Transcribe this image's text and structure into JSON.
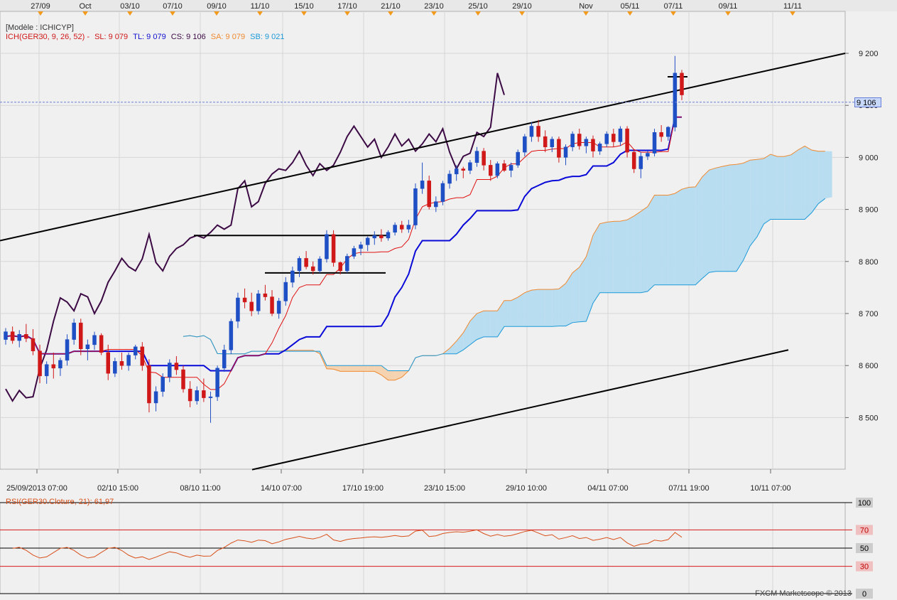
{
  "top_dates": [
    "27/09",
    "Oct",
    "03/10",
    "07/10",
    "09/10",
    "11/10",
    "15/10",
    "17/10",
    "21/10",
    "23/10",
    "25/10",
    "29/10",
    "Nov",
    "05/11",
    "07/11",
    "09/11",
    "11/11"
  ],
  "bottom_dates": [
    "25/09/2013 07:00",
    "02/10 15:00",
    "08/10 11:00",
    "14/10 07:00",
    "17/10 19:00",
    "23/10 15:00",
    "29/10 10:00",
    "04/11 07:00",
    "07/11 19:00",
    "10/11 07:00"
  ],
  "legend": {
    "model": "[Modèle : ICHICYP]",
    "ich": "ICH(GER30, 9, 26, 52) -",
    "sl": "SL: 9 079",
    "tl": "TL: 9 079",
    "cs": "CS: 9 106",
    "sa": "SA: 9 079",
    "sb": "SB: 9 021",
    "rsi": "RSI(GER30.Cloture, 21): 61,97"
  },
  "price_tag": "9 106",
  "brand": "FXCM Marketscope © 2013",
  "colors": {
    "background": "#f0f0f0",
    "bull": "#1f4fc4",
    "bear": "#d01818",
    "tenkan": "#e01010",
    "kijun": "#0a0ad8",
    "chikou": "#3c0a44",
    "senkou_a": "#f08a30",
    "senkou_b": "#1c9ad8",
    "cloud_bull": "#b8dcf0",
    "cloud_bear": "#f5d2b0",
    "rsi": "#d8501a",
    "trendline": "#000000"
  },
  "chart_data": [
    {
      "type": "candlestick",
      "title": "GER30",
      "indicator": "Ichimoku (9, 26, 52)",
      "y_ticks": [
        "9 200",
        "9 100",
        "9 000",
        "8 900",
        "8 800",
        "8 700",
        "8 600",
        "8 500"
      ],
      "ylim": [
        8400,
        9240
      ],
      "current_price": 9106,
      "values": {
        "SL": 9079,
        "TL": 9079,
        "CS": 9106,
        "SA": 9079,
        "SB": 9021
      },
      "candles": [
        [
          8650,
          8672,
          8640,
          8665
        ],
        [
          8665,
          8675,
          8642,
          8648
        ],
        [
          8648,
          8668,
          8635,
          8660
        ],
        [
          8660,
          8680,
          8645,
          8652
        ],
        [
          8652,
          8670,
          8620,
          8628
        ],
        [
          8628,
          8640,
          8566,
          8580
        ],
        [
          8580,
          8608,
          8565,
          8602
        ],
        [
          8602,
          8625,
          8575,
          8595
        ],
        [
          8595,
          8615,
          8580,
          8610
        ],
        [
          8610,
          8660,
          8600,
          8650
        ],
        [
          8650,
          8690,
          8640,
          8682
        ],
        [
          8682,
          8690,
          8620,
          8632
        ],
        [
          8632,
          8650,
          8610,
          8640
        ],
        [
          8640,
          8665,
          8630,
          8658
        ],
        [
          8658,
          8662,
          8620,
          8625
        ],
        [
          8625,
          8640,
          8572,
          8585
        ],
        [
          8585,
          8615,
          8578,
          8608
        ],
        [
          8608,
          8625,
          8592,
          8600
        ],
        [
          8600,
          8625,
          8590,
          8620
        ],
        [
          8620,
          8640,
          8612,
          8636
        ],
        [
          8636,
          8645,
          8590,
          8600
        ],
        [
          8600,
          8612,
          8510,
          8528
        ],
        [
          8528,
          8560,
          8512,
          8550
        ],
        [
          8550,
          8585,
          8540,
          8578
        ],
        [
          8578,
          8612,
          8568,
          8605
        ],
        [
          8605,
          8618,
          8582,
          8592
        ],
        [
          8592,
          8600,
          8548,
          8555
        ],
        [
          8555,
          8570,
          8520,
          8532
        ],
        [
          8532,
          8560,
          8525,
          8552
        ],
        [
          8552,
          8575,
          8530,
          8538
        ],
        [
          8538,
          8550,
          8490,
          8540
        ],
        [
          8540,
          8600,
          8532,
          8595
        ],
        [
          8595,
          8640,
          8588,
          8630
        ],
        [
          8630,
          8690,
          8622,
          8685
        ],
        [
          8685,
          8740,
          8672,
          8730
        ],
        [
          8730,
          8748,
          8710,
          8722
        ],
        [
          8722,
          8740,
          8695,
          8705
        ],
        [
          8705,
          8745,
          8698,
          8738
        ],
        [
          8738,
          8755,
          8725,
          8732
        ],
        [
          8732,
          8745,
          8695,
          8700
        ],
        [
          8700,
          8730,
          8690,
          8724
        ],
        [
          8724,
          8770,
          8715,
          8760
        ],
        [
          8760,
          8790,
          8750,
          8782
        ],
        [
          8782,
          8810,
          8770,
          8806
        ],
        [
          8806,
          8820,
          8785,
          8790
        ],
        [
          8790,
          8800,
          8775,
          8782
        ],
        [
          8782,
          8810,
          8778,
          8805
        ],
        [
          8805,
          8860,
          8798,
          8852
        ],
        [
          8852,
          8860,
          8790,
          8798
        ],
        [
          8798,
          8800,
          8775,
          8782
        ],
        [
          8782,
          8815,
          8778,
          8810
        ],
        [
          8810,
          8830,
          8805,
          8825
        ],
        [
          8825,
          8838,
          8812,
          8832
        ],
        [
          8832,
          8848,
          8820,
          8845
        ],
        [
          8845,
          8858,
          8832,
          8850
        ],
        [
          8850,
          8862,
          8838,
          8845
        ],
        [
          8845,
          8860,
          8840,
          8856
        ],
        [
          8856,
          8875,
          8850,
          8870
        ],
        [
          8870,
          8878,
          8855,
          8862
        ],
        [
          8862,
          8880,
          8855,
          8870
        ],
        [
          8870,
          8950,
          8862,
          8940
        ],
        [
          8940,
          8990,
          8930,
          8955
        ],
        [
          8955,
          8965,
          8900,
          8905
        ],
        [
          8905,
          8925,
          8895,
          8915
        ],
        [
          8915,
          8955,
          8908,
          8950
        ],
        [
          8950,
          8975,
          8940,
          8968
        ],
        [
          8968,
          8985,
          8955,
          8978
        ],
        [
          8978,
          8982,
          8960,
          8975
        ],
        [
          8975,
          8995,
          8968,
          8990
        ],
        [
          8990,
          9020,
          8982,
          9012
        ],
        [
          9012,
          9018,
          8975,
          8985
        ],
        [
          8985,
          8995,
          8955,
          8965
        ],
        [
          8965,
          8992,
          8960,
          8988
        ],
        [
          8988,
          8995,
          8972,
          8975
        ],
        [
          8975,
          8990,
          8962,
          8985
        ],
        [
          8985,
          9015,
          8980,
          9010
        ],
        [
          9010,
          9045,
          9002,
          9040
        ],
        [
          9040,
          9068,
          9030,
          9060
        ],
        [
          9060,
          9072,
          9030,
          9040
        ],
        [
          9040,
          9052,
          9010,
          9020
        ],
        [
          9020,
          9040,
          9010,
          9035
        ],
        [
          9035,
          9040,
          8990,
          9000
        ],
        [
          9000,
          9025,
          8985,
          9020
        ],
        [
          9020,
          9050,
          9012,
          9045
        ],
        [
          9045,
          9055,
          9015,
          9022
        ],
        [
          9022,
          9040,
          9008,
          9035
        ],
        [
          9035,
          9042,
          9000,
          9012
        ],
        [
          9012,
          9030,
          9005,
          9026
        ],
        [
          9026,
          9050,
          9020,
          9045
        ],
        [
          9045,
          9055,
          9020,
          9030
        ],
        [
          9030,
          9060,
          9022,
          9055
        ],
        [
          9055,
          9060,
          9000,
          9010
        ],
        [
          9010,
          9015,
          8970,
          8978
        ],
        [
          8978,
          9010,
          8960,
          9002
        ],
        [
          9002,
          9012,
          8995,
          9008
        ],
        [
          9008,
          9055,
          9002,
          9048
        ],
        [
          9048,
          9062,
          9030,
          9040
        ],
        [
          9040,
          9060,
          9032,
          9058
        ],
        [
          9058,
          9195,
          9050,
          9162
        ],
        [
          9162,
          9168,
          9110,
          9120
        ]
      ],
      "trendlines": [
        {
          "name": "upper channel",
          "from": [
            "25/09/2013 07:00",
            8840
          ],
          "to": [
            "11/11",
            9200
          ]
        },
        {
          "name": "lower channel",
          "from": [
            "14/10 07:00",
            8400
          ],
          "to": [
            "10/11 07:00",
            8630
          ]
        },
        {
          "name": "resistance",
          "from": [
            "08/10 11:00",
            8850
          ],
          "to": [
            "17/10 19:00",
            8850
          ]
        },
        {
          "name": "support",
          "from": [
            "14/10 07:00",
            8778
          ],
          "to": [
            "17/10 19:00",
            8778
          ]
        },
        {
          "name": "top",
          "from": [
            "07/11",
            9155
          ],
          "to": [
            "07/11",
            9155
          ]
        }
      ]
    },
    {
      "type": "line",
      "title": "RSI(GER30.Cloture, 21)",
      "last_value": 61.97,
      "y_ticks": [
        "100",
        "70",
        "50",
        "30",
        "0"
      ],
      "ylim": [
        0,
        100
      ],
      "levels": [
        70,
        50,
        30
      ]
    }
  ]
}
